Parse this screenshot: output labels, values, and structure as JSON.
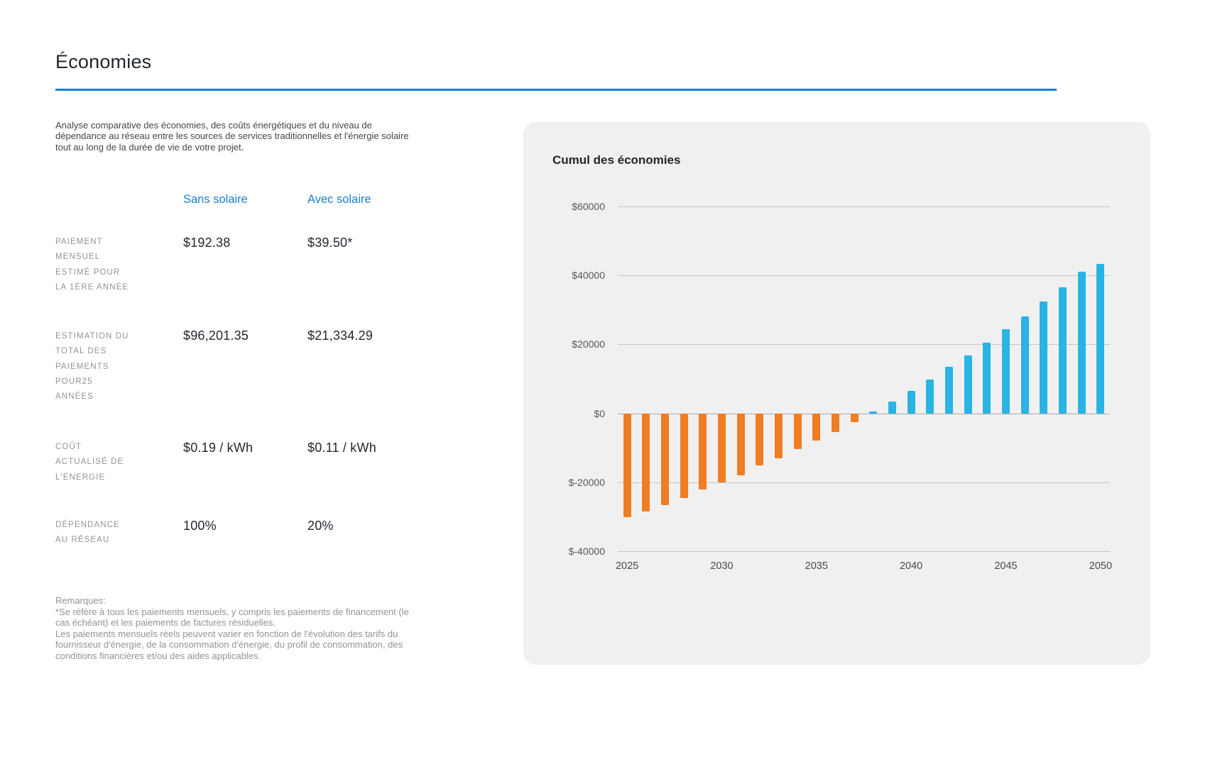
{
  "page": {
    "title": "Économies"
  },
  "intro": {
    "description": "Analyse comparative des économies, des coûts énergétiques et du niveau de\ndépendance au réseau entre les sources de services traditionnelles et l'énergie solaire\ntout au long de la durée de vie de votre projet."
  },
  "comparison_table": {
    "columns": [
      {
        "label": "Sans solaire"
      },
      {
        "label": "Avec solaire"
      }
    ],
    "rows": [
      {
        "label": "PAIEMENT\nMENSUEL\nESTIMÉ POUR\nLA 1ÈRE ANNÉE",
        "sans_solaire": "$192.38",
        "avec_solaire": "$39.50*"
      },
      {
        "label": "ESTIMATION DU\nTOTAL DES\nPAIEMENTS\nPOUR25\nANNÉES",
        "sans_solaire": "$96,201.35",
        "avec_solaire": "$21,334.29"
      },
      {
        "label": "COÛT\nACTUALISÉ DE\nL'ÉNERGIE",
        "sans_solaire": "$0.19 / kWh",
        "avec_solaire": "$0.11 / kWh"
      },
      {
        "label": "DÉPENDANCE\nAU RÉSEAU",
        "sans_solaire": "100%",
        "avec_solaire": "20%"
      }
    ]
  },
  "notes": {
    "heading": "Remarques:",
    "items": [
      "*Se réfère à tous les paiements mensuels, y compris les paiements de financement (le\ncas échéant) et les paiements de factures résiduelles.",
      "Les paiements mensuels réels peuvent varier en fonction de l'évolution des tarifs du\nfournisseur d'énergie, de la consommation d'énergie, du profil de consommation, des\nconditions financières et/ou des aides applicables."
    ]
  },
  "chart_data": {
    "type": "bar",
    "title": "Cumul des économies",
    "x": [
      2025,
      2026,
      2027,
      2028,
      2029,
      2030,
      2031,
      2032,
      2033,
      2034,
      2035,
      2036,
      2037,
      2038,
      2039,
      2040,
      2041,
      2042,
      2043,
      2044,
      2045,
      2046,
      2047,
      2048,
      2049,
      2050
    ],
    "values": [
      -30200,
      -28500,
      -26600,
      -24600,
      -22200,
      -20100,
      -17900,
      -15200,
      -13000,
      -10400,
      -8000,
      -5400,
      -2500,
      500,
      3500,
      6600,
      9900,
      13500,
      16900,
      20500,
      24400,
      28200,
      32500,
      36600,
      41000,
      43400
    ],
    "ylim": [
      -40000,
      60000
    ],
    "yticks": [
      {
        "value": 60000,
        "label": "$60000"
      },
      {
        "value": 40000,
        "label": "$40000"
      },
      {
        "value": 20000,
        "label": "$20000"
      },
      {
        "value": 0,
        "label": "$0"
      },
      {
        "value": -20000,
        "label": "$-20000"
      },
      {
        "value": -40000,
        "label": "$-40000"
      }
    ],
    "xticks": [
      {
        "index": 0,
        "label": "2025"
      },
      {
        "index": 5,
        "label": "2030"
      },
      {
        "index": 10,
        "label": "2035"
      },
      {
        "index": 15,
        "label": "2040"
      },
      {
        "index": 20,
        "label": "2045"
      },
      {
        "index": 25,
        "label": "2050"
      }
    ],
    "grid": true,
    "legend": null,
    "colors": {
      "positive": "#29B4E3",
      "negative": "#F07D22"
    }
  },
  "accent_colors": {
    "header_blue": "#1B7ED2",
    "rule_blue": "#1B7ED2",
    "panel_background": "#F0F0F1"
  }
}
